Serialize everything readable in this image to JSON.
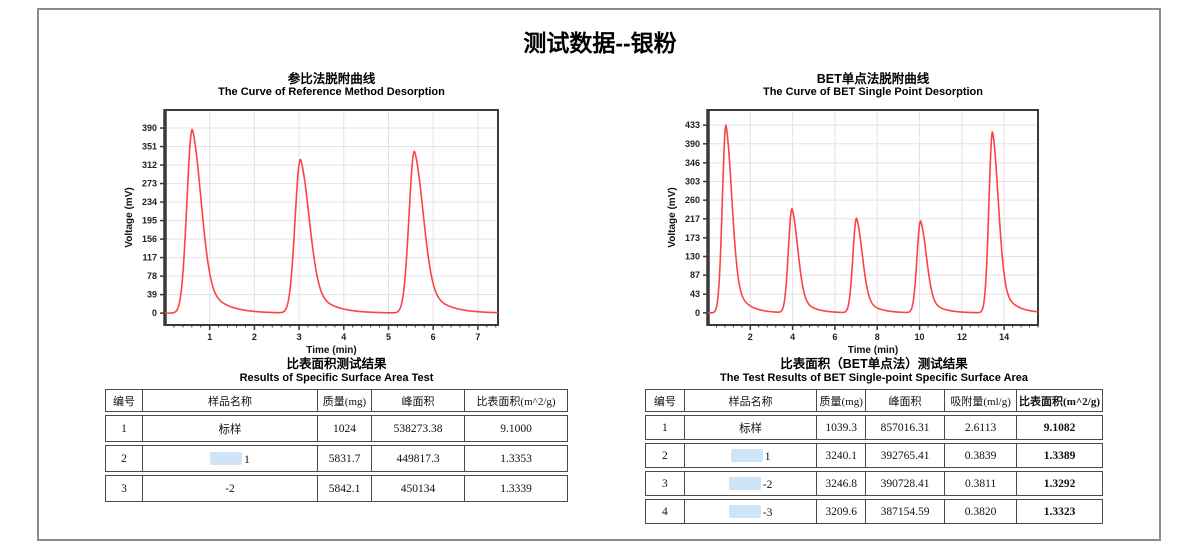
{
  "page": {
    "title": "测试数据--银粉"
  },
  "colors": {
    "curve": "#ff4242",
    "frame_border": "#8c8c8c",
    "redaction_blob": "#cfe4f6"
  },
  "chart_data": [
    {
      "type": "line",
      "title_zh": "参比法脱附曲线",
      "title_en": "The Curve of Reference Method Desorption",
      "xlabel": "Time (min)",
      "ylabel": "Voltage (mV)",
      "line_color": "#ff4242",
      "grid": true,
      "x_range": [
        0,
        7.45
      ],
      "y_range": [
        -25,
        428
      ],
      "xticks": [
        1,
        2,
        3,
        4,
        5,
        6,
        7
      ],
      "yticks": [
        0,
        39,
        78,
        117,
        156,
        195,
        234,
        273,
        312,
        351,
        390
      ],
      "peaks": [
        {
          "time_min": 0.61,
          "height_mV": 387
        },
        {
          "time_min": 3.03,
          "height_mV": 324
        },
        {
          "time_min": 5.58,
          "height_mV": 341
        }
      ],
      "shape": {
        "rise_sigma": 0.12,
        "fall_sigma": 0.2,
        "tail_frac": 0.3,
        "tail_tau": 0.4
      }
    },
    {
      "type": "line",
      "title_zh": "BET单点法脱附曲线",
      "title_en": "The Curve of BET Single Point Desorption",
      "xlabel": "Time (min)",
      "ylabel": "Voltage (mV)",
      "line_color": "#ff4242",
      "grid": true,
      "x_range": [
        0,
        15.6
      ],
      "y_range": [
        -28,
        468
      ],
      "xticks": [
        2,
        4,
        6,
        8,
        10,
        12,
        14
      ],
      "yticks": [
        0,
        43,
        87,
        130,
        173,
        217,
        260,
        303,
        346,
        390,
        433
      ],
      "peaks": [
        {
          "time_min": 0.85,
          "height_mV": 433
        },
        {
          "time_min": 3.97,
          "height_mV": 240
        },
        {
          "time_min": 7.02,
          "height_mV": 218
        },
        {
          "time_min": 10.05,
          "height_mV": 212
        },
        {
          "time_min": 13.45,
          "height_mV": 418
        }
      ],
      "shape": {
        "rise_sigma": 0.17,
        "fall_sigma": 0.28,
        "tail_frac": 0.3,
        "tail_tau": 0.55
      }
    }
  ],
  "tables": [
    {
      "title_zh": "比表面积测试结果",
      "title_en": "Results of Specific Surface Area Test",
      "headers": [
        "编号",
        "样品名称",
        "质量(mg)",
        "峰面积",
        "比表面积(m^2/g)"
      ],
      "rows": [
        {
          "no": "1",
          "name": "标样",
          "name_redacted": false,
          "mass": "1024",
          "peak_area": "538273.38",
          "ssa": "9.1000"
        },
        {
          "no": "2",
          "name": "1",
          "name_redacted": true,
          "mass": "5831.7",
          "peak_area": "449817.3",
          "ssa": "1.3353"
        },
        {
          "no": "3",
          "name": "-2",
          "name_redacted": false,
          "mass": "5842.1",
          "peak_area": "450134",
          "ssa": "1.3339"
        }
      ]
    },
    {
      "title_zh": "比表面积（BET单点法）测试结果",
      "title_en": "The Test Results of BET Single-point Specific Surface Area",
      "headers": [
        "编号",
        "样品名称",
        "质量(mg)",
        "峰面积",
        "吸附量(ml/g)",
        "比表面积(m^2/g)"
      ],
      "rows": [
        {
          "no": "1",
          "name": "标样",
          "name_redacted": false,
          "mass": "1039.3",
          "peak_area": "857016.31",
          "adsorption": "2.6113",
          "ssa": "9.1082"
        },
        {
          "no": "2",
          "name": "1",
          "name_redacted": true,
          "mass": "3240.1",
          "peak_area": "392765.41",
          "adsorption": "0.3839",
          "ssa": "1.3389"
        },
        {
          "no": "3",
          "name": "-2",
          "name_redacted": true,
          "mass": "3246.8",
          "peak_area": "390728.41",
          "adsorption": "0.3811",
          "ssa": "1.3292"
        },
        {
          "no": "4",
          "name": "-3",
          "name_redacted": true,
          "mass": "3209.6",
          "peak_area": "387154.59",
          "adsorption": "0.3820",
          "ssa": "1.3323"
        }
      ]
    }
  ]
}
